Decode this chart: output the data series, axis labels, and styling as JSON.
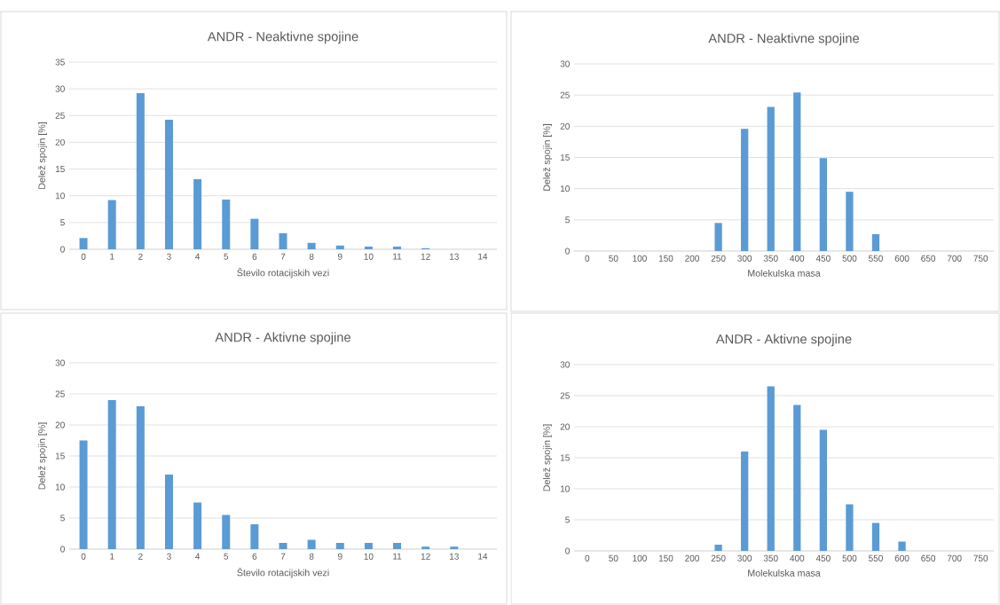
{
  "chart_data": [
    {
      "type": "bar",
      "title": "ANDR - Neaktivne spojine",
      "xlabel": "Število rotacijskih vezi",
      "ylabel": "Delež spojin [%]",
      "categories": [
        "0",
        "1",
        "2",
        "3",
        "4",
        "5",
        "6",
        "7",
        "8",
        "9",
        "10",
        "11",
        "12",
        "13",
        "14"
      ],
      "values": [
        2.1,
        9.2,
        29.2,
        24.2,
        13.1,
        9.3,
        5.7,
        3.0,
        1.2,
        0.7,
        0.5,
        0.5,
        0.2,
        0,
        0
      ],
      "color": "#5b9bd5",
      "ylim": [
        0,
        35
      ],
      "yticks": [
        0,
        5,
        10,
        15,
        20,
        25,
        30,
        35
      ],
      "grid": "y"
    },
    {
      "type": "bar",
      "title": "ANDR - Neaktivne spojine",
      "xlabel": "Molekulska masa",
      "ylabel": "Delež spojin [%]",
      "categories": [
        "0",
        "50",
        "100",
        "150",
        "200",
        "250",
        "300",
        "350",
        "400",
        "450",
        "500",
        "550",
        "600",
        "650",
        "700",
        "750"
      ],
      "values": [
        0,
        0,
        0,
        0,
        0,
        4.5,
        19.6,
        23.1,
        25.4,
        14.9,
        9.5,
        2.7,
        0,
        0,
        0,
        0
      ],
      "color": "#5b9bd5",
      "ylim": [
        0,
        30
      ],
      "yticks": [
        0,
        5,
        10,
        15,
        20,
        25,
        30
      ],
      "grid": "y"
    },
    {
      "type": "bar",
      "title": "ANDR - Aktivne spojine",
      "xlabel": "Število rotacijskih vezi",
      "ylabel": "Delež spojin [%]",
      "categories": [
        "0",
        "1",
        "2",
        "3",
        "4",
        "5",
        "6",
        "7",
        "8",
        "9",
        "10",
        "11",
        "12",
        "13",
        "14"
      ],
      "values": [
        17.5,
        24.0,
        23.0,
        12.0,
        7.5,
        5.5,
        4.0,
        1.0,
        1.5,
        1.0,
        1.0,
        1.0,
        0.4,
        0.4,
        0
      ],
      "color": "#5b9bd5",
      "ylim": [
        0,
        30
      ],
      "yticks": [
        0,
        5,
        10,
        15,
        20,
        25,
        30
      ],
      "grid": "y"
    },
    {
      "type": "bar",
      "title": "ANDR - Aktivne spojine",
      "xlabel": "Molekulska masa",
      "ylabel": "Delež spojin [%]",
      "categories": [
        "0",
        "50",
        "100",
        "150",
        "200",
        "250",
        "300",
        "350",
        "400",
        "450",
        "500",
        "550",
        "600",
        "650",
        "700",
        "750"
      ],
      "values": [
        0,
        0,
        0,
        0,
        0,
        1.0,
        16.0,
        26.5,
        23.5,
        19.5,
        7.5,
        4.5,
        1.5,
        0,
        0,
        0
      ],
      "color": "#5b9bd5",
      "ylim": [
        0,
        30
      ],
      "yticks": [
        0,
        5,
        10,
        15,
        20,
        25,
        30
      ],
      "grid": "y"
    }
  ]
}
